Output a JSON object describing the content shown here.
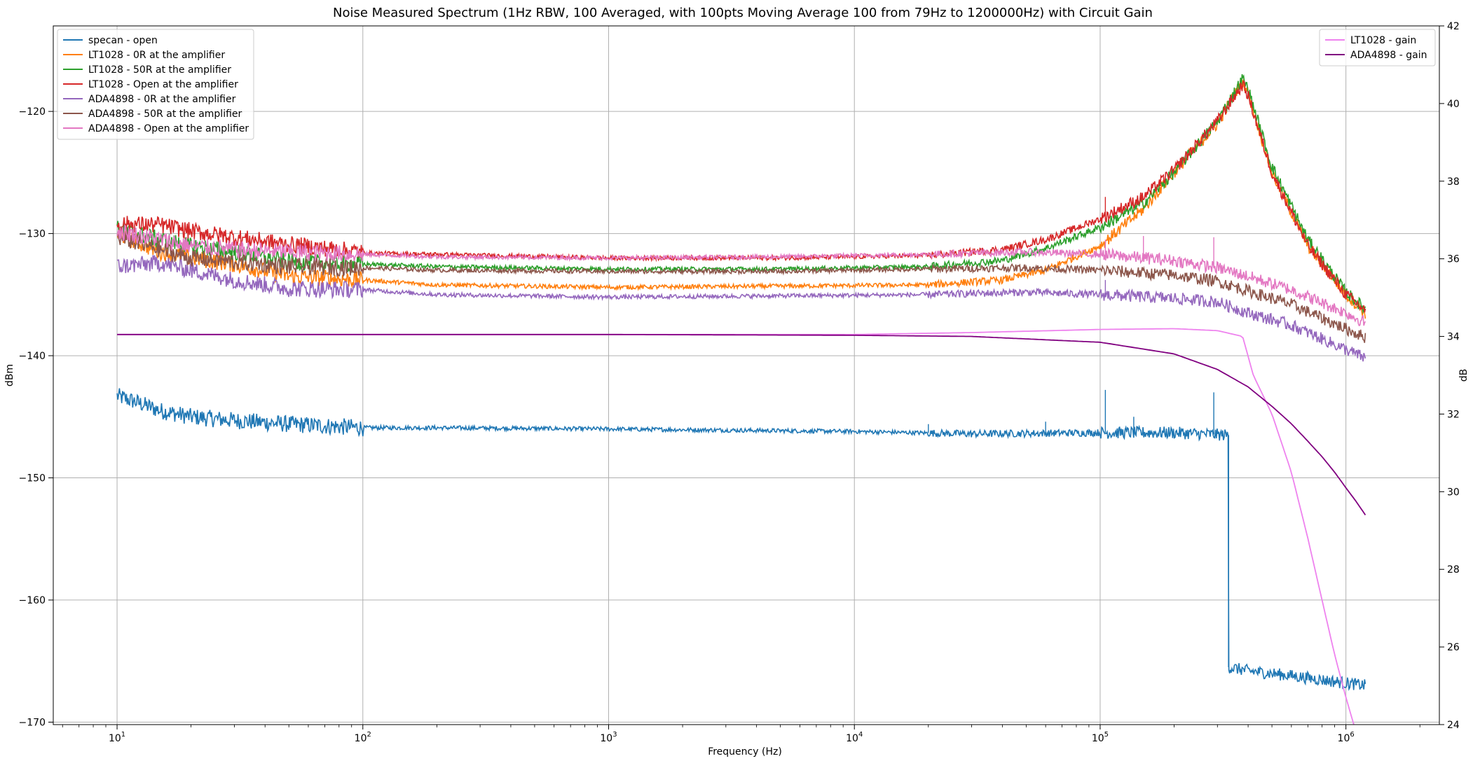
{
  "chart_data": {
    "type": "line",
    "title": "Noise Measured Spectrum (1Hz RBW, 100 Averaged, with 100pts Moving Average 100 from 79Hz to 1200000Hz) with Circuit Gain",
    "xlabel": "Frequency (Hz)",
    "ylabel_left": "dBm",
    "ylabel_right": "dB",
    "x_scale": "log",
    "xlim": [
      5.5,
      2400000
    ],
    "ylim_left": [
      -170.2,
      -113
    ],
    "ylim_right": [
      24,
      42
    ],
    "grid": true,
    "x_ticks": [
      {
        "value": 10,
        "base": "10",
        "exp": "1"
      },
      {
        "value": 100,
        "base": "10",
        "exp": "2"
      },
      {
        "value": 1000,
        "base": "10",
        "exp": "3"
      },
      {
        "value": 10000,
        "base": "10",
        "exp": "4"
      },
      {
        "value": 100000,
        "base": "10",
        "exp": "5"
      },
      {
        "value": 1000000,
        "base": "10",
        "exp": "6"
      }
    ],
    "y_ticks_left": [
      "-120",
      "-130",
      "-140",
      "-150",
      "-160",
      "-170"
    ],
    "y_ticks_right": [
      "24",
      "26",
      "28",
      "30",
      "32",
      "34",
      "36",
      "38",
      "40",
      "42"
    ],
    "legend_left": {
      "placement": "upper-left",
      "entries": [
        "specan - open",
        "LT1028 - 0R at the amplifier",
        "LT1028 - 50R at the amplifier",
        "LT1028 - Open at the amplifier",
        "ADA4898 - 0R at the amplifier",
        "ADA4898 - 50R at the amplifier",
        "ADA4898 - Open at the amplifier"
      ]
    },
    "legend_right": {
      "placement": "upper-right",
      "entries": [
        "LT1028 - gain",
        "ADA4898 - gain"
      ]
    },
    "colors": {
      "specan": "#1f77b4",
      "lt_0r": "#ff7f0e",
      "lt_50r": "#2ca02c",
      "lt_open": "#d62728",
      "ada_0r": "#9467bd",
      "ada_50r": "#8c564b",
      "ada_open": "#e377c2",
      "lt_gain": "#ee82ee",
      "ada_gain": "#800080"
    },
    "series_left": [
      {
        "key": "specan",
        "x": [
          10,
          12,
          15,
          20,
          30,
          50,
          100,
          101,
          200,
          1000,
          10000,
          30000,
          100000,
          200000,
          330000,
          333000,
          400000,
          600000,
          1000000,
          1200000
        ],
        "y": [
          -143.3,
          -143.8,
          -144.5,
          -145.0,
          -145.3,
          -145.6,
          -145.9,
          -145.9,
          -145.9,
          -146.0,
          -146.2,
          -146.4,
          -146.3,
          -146.3,
          -146.5,
          -165.5,
          -165.8,
          -166.2,
          -166.8,
          -167.0
        ]
      },
      {
        "key": "lt_0r",
        "x": [
          10,
          15,
          20,
          30,
          50,
          100,
          101,
          200,
          1000,
          5000,
          20000,
          40000,
          60000,
          100000,
          150000,
          200000,
          300000,
          380000,
          400000,
          500000,
          700000,
          1000000,
          1200000
        ],
        "y": [
          -130.0,
          -131.5,
          -132.0,
          -132.5,
          -133.5,
          -133.8,
          -133.8,
          -134.2,
          -134.4,
          -134.3,
          -134.2,
          -133.8,
          -133.0,
          -131.0,
          -128.0,
          -125.0,
          -121.0,
          -117.5,
          -118.5,
          -125.0,
          -131.0,
          -135.0,
          -136.5
        ]
      },
      {
        "key": "lt_50r",
        "x": [
          10,
          15,
          20,
          30,
          50,
          100,
          101,
          200,
          1000,
          5000,
          20000,
          40000,
          60000,
          100000,
          150000,
          200000,
          300000,
          380000,
          400000,
          500000,
          700000,
          1000000,
          1200000
        ],
        "y": [
          -129.6,
          -130.5,
          -131.0,
          -131.5,
          -132.3,
          -132.5,
          -132.5,
          -132.7,
          -132.9,
          -132.9,
          -132.7,
          -132.2,
          -131.2,
          -129.5,
          -127.5,
          -125.0,
          -120.8,
          -117.3,
          -118.2,
          -124.5,
          -130.5,
          -134.8,
          -136.2
        ]
      },
      {
        "key": "lt_open",
        "x": [
          10,
          15,
          20,
          30,
          50,
          100,
          101,
          200,
          1000,
          5000,
          20000,
          40000,
          60000,
          100000,
          150000,
          200000,
          300000,
          380000,
          400000,
          500000,
          700000,
          1000000,
          1200000
        ],
        "y": [
          -129.2,
          -129.3,
          -129.8,
          -130.3,
          -130.9,
          -131.5,
          -131.6,
          -131.7,
          -132.0,
          -132.0,
          -131.8,
          -131.3,
          -130.5,
          -128.8,
          -127.0,
          -124.8,
          -120.8,
          -117.8,
          -118.7,
          -125.0,
          -131.0,
          -135.0,
          -136.3
        ]
      },
      {
        "key": "ada_0r",
        "x": [
          10,
          15,
          20,
          30,
          50,
          100,
          101,
          200,
          1000,
          5000,
          20000,
          50000,
          100000,
          200000,
          300000,
          400000,
          600000,
          1000000,
          1200000
        ],
        "y": [
          -132.7,
          -132.4,
          -133.0,
          -133.8,
          -134.5,
          -134.6,
          -134.6,
          -135.0,
          -135.2,
          -135.1,
          -135.0,
          -134.8,
          -135.0,
          -135.3,
          -135.6,
          -136.5,
          -137.5,
          -139.5,
          -140.2
        ]
      },
      {
        "key": "ada_50r",
        "x": [
          10,
          15,
          20,
          30,
          50,
          100,
          101,
          200,
          1000,
          5000,
          20000,
          50000,
          100000,
          200000,
          300000,
          400000,
          600000,
          1000000,
          1200000
        ],
        "y": [
          -130.3,
          -131.3,
          -132.0,
          -132.3,
          -132.7,
          -132.8,
          -132.8,
          -133.0,
          -133.1,
          -133.1,
          -132.9,
          -132.8,
          -133.0,
          -133.4,
          -133.9,
          -134.7,
          -135.8,
          -137.8,
          -138.5
        ]
      },
      {
        "key": "ada_open",
        "x": [
          10,
          15,
          20,
          30,
          50,
          100,
          101,
          200,
          1000,
          5000,
          20000,
          50000,
          100000,
          200000,
          300000,
          400000,
          600000,
          1000000,
          1200000
        ],
        "y": [
          -129.8,
          -130.5,
          -131.0,
          -131.3,
          -131.5,
          -131.7,
          -131.7,
          -131.9,
          -132.0,
          -131.9,
          -131.7,
          -131.5,
          -131.7,
          -132.2,
          -132.8,
          -133.5,
          -134.6,
          -136.5,
          -137.3
        ]
      }
    ],
    "series_right": [
      {
        "key": "lt_gain",
        "x": [
          10,
          100,
          1000,
          10000,
          30000,
          100000,
          200000,
          300000,
          380000,
          420000,
          500000,
          600000,
          700000,
          800000,
          900000,
          1000000,
          1100000,
          1200000
        ],
        "y": [
          34.05,
          34.05,
          34.05,
          34.05,
          34.1,
          34.18,
          34.2,
          34.15,
          34.0,
          33.0,
          32.0,
          30.5,
          28.8,
          27.2,
          25.8,
          24.7,
          23.8,
          23.0
        ]
      },
      {
        "key": "ada_gain",
        "x": [
          10,
          100,
          1000,
          10000,
          30000,
          100000,
          200000,
          300000,
          400000,
          500000,
          600000,
          700000,
          800000,
          900000,
          1000000,
          1100000,
          1200000
        ],
        "y": [
          34.05,
          34.05,
          34.05,
          34.03,
          34.0,
          33.85,
          33.55,
          33.15,
          32.7,
          32.2,
          31.75,
          31.3,
          30.9,
          30.5,
          30.1,
          29.75,
          29.4
        ]
      }
    ],
    "spikes_left": [
      {
        "key": "specan",
        "x": [
          105000,
          137000,
          290000,
          60000,
          20000
        ],
        "y": [
          -142.8,
          -145.0,
          -143.0,
          -145.4,
          -145.6
        ]
      },
      {
        "key": "lt_open",
        "x": [
          105000,
          290000
        ],
        "y": [
          -127.0,
          -120.8
        ]
      },
      {
        "key": "ada_open",
        "x": [
          105000,
          150000,
          290000
        ],
        "y": [
          -130.5,
          -130.2,
          -130.3
        ]
      },
      {
        "key": "ada_0r",
        "x": [
          105000
        ],
        "y": [
          -133.8
        ]
      }
    ]
  }
}
